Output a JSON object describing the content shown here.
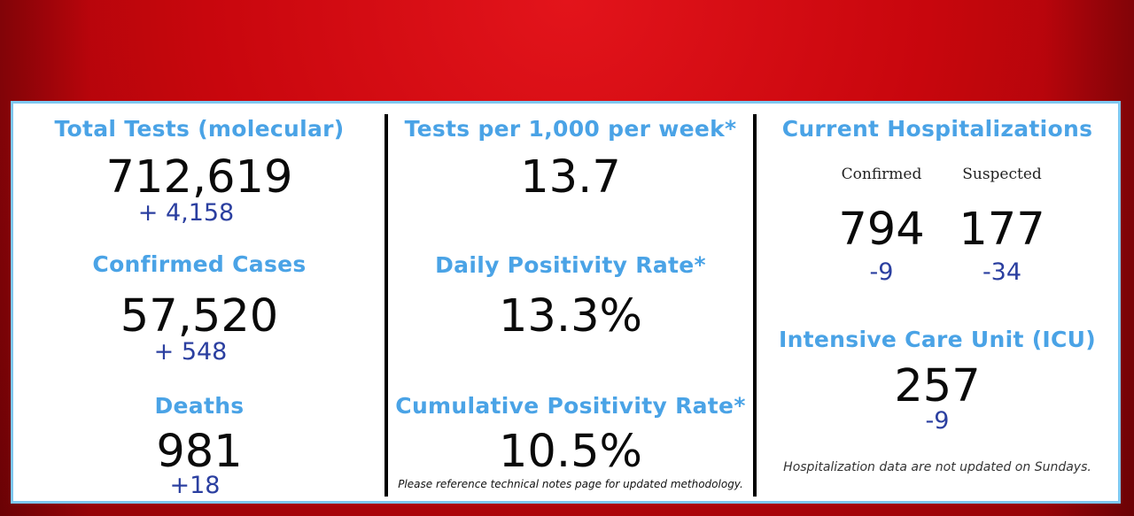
{
  "col1": {
    "tests_title": "Total Tests (molecular)",
    "tests_value": "712,619",
    "tests_change": "+  4,158",
    "cases_title": "Confirmed Cases",
    "cases_value": "57,520",
    "cases_change": "+ 548",
    "deaths_title": "Deaths",
    "deaths_value": "981",
    "deaths_change": "+18"
  },
  "col2": {
    "tpk_title": "Tests per 1,000 per week*",
    "tpk_value": "13.7",
    "daily_title": "Daily Positivity Rate*",
    "daily_value": "13.3%",
    "cumulative_title": "Cumulative Positivity Rate*",
    "cumulative_value": "10.5%",
    "note": "Please reference technical notes page for updated methodology."
  },
  "col3": {
    "hosp_title": "Current Hospitalizations",
    "confirmed_label": "Confirmed",
    "suspected_label": "Suspected",
    "confirmed_value": "794",
    "suspected_value": "177",
    "confirmed_change": "-9",
    "suspected_change": "-34",
    "icu_title": "Intensive Care Unit (ICU)",
    "icu_value": "257",
    "icu_change": "-9",
    "note": "Hospitalization data are not updated on Sundays."
  },
  "colors": {
    "background_red": "#c8060d",
    "heading_blue": "#4aa3e6",
    "change_navy": "#2b3fa0",
    "panel_border": "#7ec7f0"
  }
}
